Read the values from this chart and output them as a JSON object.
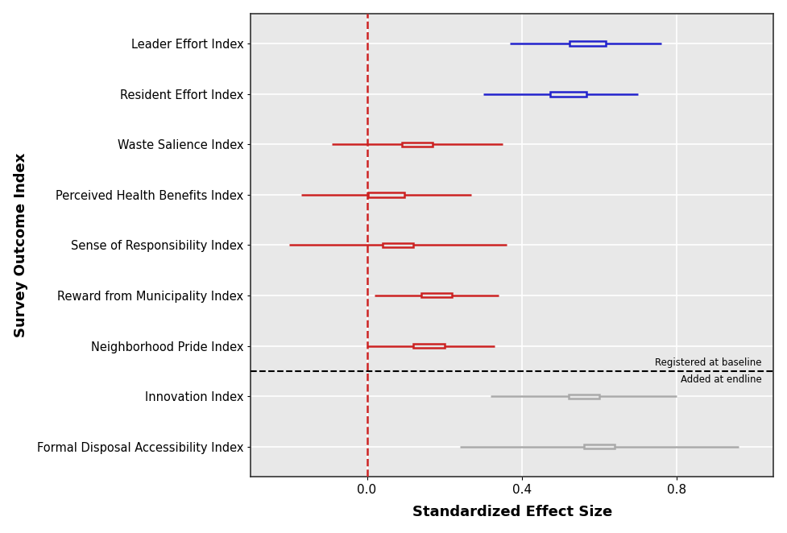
{
  "labels": [
    "Leader Effort Index",
    "Resident Effort Index",
    "Waste Salience Index",
    "Perceived Health Benefits Index",
    "Sense of Responsibility Index",
    "Reward from Municipality Index",
    "Neighborhood Pride Index",
    "Innovation Index",
    "Formal Disposal Accessibility Index"
  ],
  "centers": [
    0.57,
    0.52,
    0.13,
    0.05,
    0.08,
    0.18,
    0.16,
    0.56,
    0.6
  ],
  "ci_low": [
    0.37,
    0.3,
    -0.09,
    -0.17,
    -0.2,
    0.02,
    0.0,
    0.32,
    0.24
  ],
  "ci_high": [
    0.76,
    0.7,
    0.35,
    0.27,
    0.36,
    0.34,
    0.33,
    0.8,
    0.96
  ],
  "colors": [
    "#2222cc",
    "#2222cc",
    "#cc2222",
    "#cc2222",
    "#cc2222",
    "#cc2222",
    "#cc2222",
    "#aaaaaa",
    "#aaaaaa"
  ],
  "box_half": [
    0.046,
    0.046,
    0.04,
    0.046,
    0.04,
    0.04,
    0.04,
    0.04,
    0.04
  ],
  "separator_between": [
    6,
    7
  ],
  "xlim": [
    -0.3,
    1.05
  ],
  "xticks": [
    0.0,
    0.4,
    0.8
  ],
  "xticklabels": [
    "0.0",
    "0.4",
    "0.8"
  ],
  "xlabel": "Standardized Effect Size",
  "ylabel": "Survey Outcome Index",
  "vline_x": 0.0,
  "annotation_baseline": "Registered at baseline",
  "annotation_endline": "Added at endline",
  "background_color": "#e8e8e8",
  "grid_color": "#ffffff",
  "linewidth": 1.8
}
